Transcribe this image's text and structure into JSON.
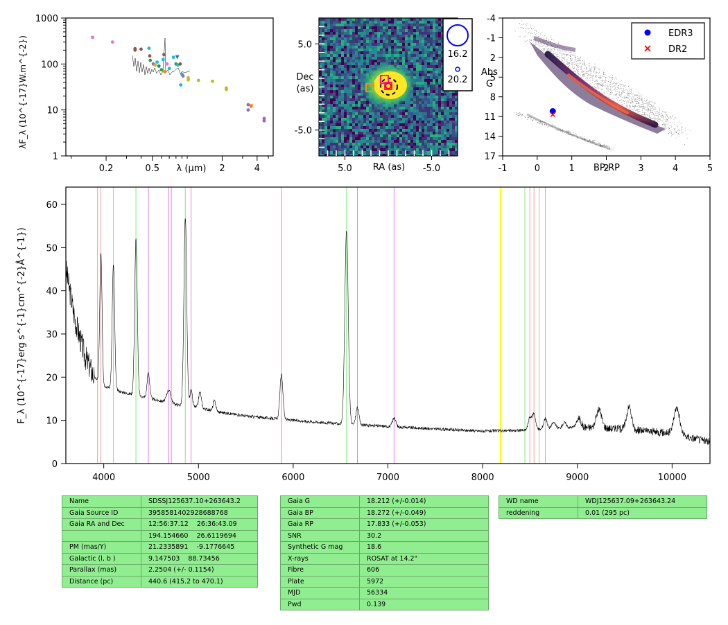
{
  "colors": {
    "line_hydrogen": "#80e880",
    "line_helium": "#e080e0",
    "line_calcium": "#f0a0a0",
    "line_marker": "#ffff00",
    "table_bg": "#90ee90",
    "edr3": "#0000ff",
    "dr2": "#ff0000"
  },
  "chart_data": [
    {
      "id": "sed",
      "type": "scatter",
      "xscale": "log",
      "yscale": "log",
      "xlabel": "λ (μm)",
      "ylabel": "λF_λ (10^{-17}W.m^{-2})",
      "xlim": [
        0.09,
        5.5
      ],
      "ylim": [
        1,
        1000
      ],
      "xticks": [
        {
          "v": 0.2,
          "label": "0.2"
        },
        {
          "v": 0.5,
          "label": "0.5"
        },
        {
          "v": 2,
          "label": "2"
        },
        {
          "v": 4,
          "label": "4"
        }
      ],
      "yticks": [
        {
          "v": 1,
          "label": "1"
        },
        {
          "v": 10,
          "label": "10"
        },
        {
          "v": 100,
          "label": "100"
        },
        {
          "v": 1000,
          "label": "1000"
        }
      ],
      "points": [
        {
          "x": 0.153,
          "y": 380,
          "color": "#e377c2"
        },
        {
          "x": 0.227,
          "y": 300,
          "color": "#e377c2"
        },
        {
          "x": 0.355,
          "y": 200,
          "color": "#8c564b"
        },
        {
          "x": 0.355,
          "y": 215,
          "color": "#8c564b"
        },
        {
          "x": 0.4,
          "y": 210,
          "color": "#8c564b"
        },
        {
          "x": 0.468,
          "y": 220,
          "color": "#17becf"
        },
        {
          "x": 0.475,
          "y": 150,
          "color": "#8c564b"
        },
        {
          "x": 0.48,
          "y": 120,
          "color": "#2ca02c"
        },
        {
          "x": 0.51,
          "y": 100,
          "color": "#9467bd"
        },
        {
          "x": 0.53,
          "y": 95,
          "color": "#bcbd22"
        },
        {
          "x": 0.55,
          "y": 110,
          "color": "#17becf"
        },
        {
          "x": 0.57,
          "y": 90,
          "color": "#1f77b4"
        },
        {
          "x": 0.6,
          "y": 75,
          "color": "#2ca02c"
        },
        {
          "x": 0.62,
          "y": 125,
          "color": "#17becf"
        },
        {
          "x": 0.63,
          "y": 160,
          "color": "#8c564b"
        },
        {
          "x": 0.64,
          "y": 68,
          "color": "#ff7f0e"
        },
        {
          "x": 0.67,
          "y": 100,
          "color": "#e377c2"
        },
        {
          "x": 0.7,
          "y": 80,
          "color": "#17becf"
        },
        {
          "x": 0.76,
          "y": 140,
          "color": "#17becf"
        },
        {
          "x": 0.8,
          "y": 100,
          "color": "#2ca02c"
        },
        {
          "x": 0.83,
          "y": 95,
          "color": "#17becf"
        },
        {
          "x": 0.87,
          "y": 100,
          "color": "#8c564b"
        },
        {
          "x": 0.9,
          "y": 60,
          "color": "#17becf"
        },
        {
          "x": 0.92,
          "y": 55,
          "color": "#9467bd"
        },
        {
          "x": 0.88,
          "y": 35,
          "color": "#17becf"
        },
        {
          "x": 1.02,
          "y": 50,
          "color": "#bcbd22"
        },
        {
          "x": 1.02,
          "y": 45,
          "color": "#bcbd22"
        },
        {
          "x": 1.25,
          "y": 44,
          "color": "#bcbd22"
        },
        {
          "x": 1.65,
          "y": 42,
          "color": "#bcbd22"
        },
        {
          "x": 2.17,
          "y": 30,
          "color": "#bcbd22"
        },
        {
          "x": 2.17,
          "y": 28,
          "color": "#bcbd22"
        },
        {
          "x": 3.35,
          "y": 13,
          "color": "#9467bd"
        },
        {
          "x": 3.35,
          "y": 10,
          "color": "#9467bd"
        },
        {
          "x": 3.55,
          "y": 12,
          "color": "#ff7f0e"
        },
        {
          "x": 4.6,
          "y": 6.5,
          "color": "#9467bd"
        },
        {
          "x": 4.6,
          "y": 5.8,
          "color": "#9467bd"
        }
      ],
      "triangles": [
        {
          "x": 0.82,
          "y": 140,
          "color": "#1f77b4"
        },
        {
          "x": 3.55,
          "y": 12,
          "color": "#ff7f0e"
        }
      ]
    },
    {
      "id": "image",
      "type": "heatmap",
      "xlabel": "RA (as)",
      "ylabel": "Dec (as)",
      "xlim": [
        8,
        -8
      ],
      "ylim": [
        -8,
        8
      ],
      "xticks": [
        {
          "v": 5,
          "label": "5.0"
        },
        {
          "v": -5,
          "label": "-5.0"
        }
      ],
      "yticks": [
        {
          "v": 5,
          "label": "5.0"
        },
        {
          "v": -5,
          "label": "-5.0"
        }
      ],
      "source": {
        "x": 0,
        "y": 0
      },
      "legend": [
        {
          "label": "16.2"
        },
        {
          "label": "20.2"
        }
      ]
    },
    {
      "id": "hr",
      "type": "scatter",
      "xlabel": "BP-RP",
      "ylabel": "Abs G",
      "xlim": [
        -1,
        5
      ],
      "ylim": [
        17,
        -4
      ],
      "xticks": [
        {
          "v": -1,
          "label": "-1"
        },
        {
          "v": 0,
          "label": "0"
        },
        {
          "v": 1,
          "label": "1"
        },
        {
          "v": 2,
          "label": "2"
        },
        {
          "v": 3,
          "label": "3"
        },
        {
          "v": 4,
          "label": "4"
        },
        {
          "v": 5,
          "label": "5"
        }
      ],
      "yticks": [
        {
          "v": -4,
          "label": "-4"
        },
        {
          "v": -1,
          "label": "-1"
        },
        {
          "v": 2,
          "label": "2"
        },
        {
          "v": 5,
          "label": "5"
        },
        {
          "v": 8,
          "label": "8"
        },
        {
          "v": 11,
          "label": "11"
        },
        {
          "v": 14,
          "label": "14"
        },
        {
          "v": 17,
          "label": "17"
        }
      ],
      "series": [
        {
          "name": "EDR3",
          "x": 0.45,
          "y": 10.2,
          "marker": "circle"
        },
        {
          "name": "DR2",
          "x": 0.45,
          "y": 10.7,
          "marker": "x"
        }
      ],
      "legend_position": "top-right"
    },
    {
      "id": "spectrum",
      "type": "line",
      "xlabel": "",
      "ylabel": "F_λ (10^{-17}erg s^{-1}cm^{-2}Å^{-1})",
      "xlim": [
        3600,
        10400
      ],
      "ylim": [
        0,
        64
      ],
      "xticks": [
        {
          "v": 4000,
          "label": "4000"
        },
        {
          "v": 5000,
          "label": "5000"
        },
        {
          "v": 6000,
          "label": "6000"
        },
        {
          "v": 7000,
          "label": "7000"
        },
        {
          "v": 8000,
          "label": "8000"
        },
        {
          "v": 9000,
          "label": "9000"
        },
        {
          "v": 10000,
          "label": "10000"
        }
      ],
      "yticks": [
        {
          "v": 0,
          "label": "0"
        },
        {
          "v": 10,
          "label": "10"
        },
        {
          "v": 20,
          "label": "20"
        },
        {
          "v": 30,
          "label": "30"
        },
        {
          "v": 40,
          "label": "40"
        },
        {
          "v": 50,
          "label": "50"
        },
        {
          "v": 60,
          "label": "60"
        }
      ],
      "continuum": [
        [
          3600,
          45
        ],
        [
          3700,
          33
        ],
        [
          3800,
          25
        ],
        [
          3900,
          20
        ],
        [
          4000,
          18
        ],
        [
          4200,
          16.5
        ],
        [
          4400,
          15.5
        ],
        [
          4600,
          14.5
        ],
        [
          4800,
          13.5
        ],
        [
          5000,
          13
        ],
        [
          5200,
          12
        ],
        [
          5500,
          11
        ],
        [
          6000,
          10
        ],
        [
          6500,
          9.2
        ],
        [
          7000,
          8.6
        ],
        [
          7500,
          8
        ],
        [
          8000,
          7.5
        ],
        [
          8500,
          7.7
        ],
        [
          9000,
          8.5
        ],
        [
          9500,
          8
        ],
        [
          10000,
          7
        ],
        [
          10400,
          5
        ]
      ],
      "emission_lines": [
        {
          "x": 3970,
          "peak": 49,
          "width": 12
        },
        {
          "x": 4102,
          "peak": 46,
          "width": 13
        },
        {
          "x": 4340,
          "peak": 52,
          "width": 14
        },
        {
          "x": 4471,
          "peak": 21,
          "width": 14
        },
        {
          "x": 4686,
          "peak": 17,
          "width": 22
        },
        {
          "x": 4861,
          "peak": 57,
          "width": 15
        },
        {
          "x": 4922,
          "peak": 17,
          "width": 13
        },
        {
          "x": 5016,
          "peak": 16.5,
          "width": 14
        },
        {
          "x": 5169,
          "peak": 14.5,
          "width": 14
        },
        {
          "x": 5876,
          "peak": 20.5,
          "width": 16
        },
        {
          "x": 6563,
          "peak": 54,
          "width": 18
        },
        {
          "x": 6678,
          "peak": 13,
          "width": 16
        },
        {
          "x": 7065,
          "peak": 10.5,
          "width": 18
        },
        {
          "x": 8498,
          "peak": 10.5,
          "width": 18
        },
        {
          "x": 8542,
          "peak": 11.5,
          "width": 18
        },
        {
          "x": 8662,
          "peak": 10.5,
          "width": 18
        },
        {
          "x": 8750,
          "peak": 9.5,
          "width": 20
        },
        {
          "x": 8863,
          "peak": 9.5,
          "width": 20
        },
        {
          "x": 9015,
          "peak": 10.5,
          "width": 22
        },
        {
          "x": 9229,
          "peak": 12.5,
          "width": 28
        },
        {
          "x": 9546,
          "peak": 13,
          "width": 26
        },
        {
          "x": 10049,
          "peak": 13,
          "width": 30
        }
      ],
      "vlines": [
        {
          "x": 3934,
          "kind": "calcium"
        },
        {
          "x": 3969,
          "kind": "calcium"
        },
        {
          "x": 4102,
          "kind": "hydrogen"
        },
        {
          "x": 4340,
          "kind": "hydrogen"
        },
        {
          "x": 4471,
          "kind": "helium"
        },
        {
          "x": 4686,
          "kind": "helium"
        },
        {
          "x": 4713,
          "kind": "helium"
        },
        {
          "x": 4861,
          "kind": "hydrogen"
        },
        {
          "x": 4922,
          "kind": "helium"
        },
        {
          "x": 5876,
          "kind": "helium"
        },
        {
          "x": 6563,
          "kind": "hydrogen"
        },
        {
          "x": 6678,
          "kind": "helium"
        },
        {
          "x": 7065,
          "kind": "helium"
        },
        {
          "x": 8190,
          "kind": "marker"
        },
        {
          "x": 8446,
          "kind": "hydrogen"
        },
        {
          "x": 8498,
          "kind": "calcium"
        },
        {
          "x": 8542,
          "kind": "calcium"
        },
        {
          "x": 8598,
          "kind": "hydrogen"
        },
        {
          "x": 8662,
          "kind": "calcium"
        }
      ]
    }
  ],
  "tables": {
    "object": [
      [
        "Name",
        "SDSSJ125637.10+263643.2"
      ],
      [
        "Gaia Source ID",
        "3958581402928688768"
      ],
      [
        "Gaia RA and Dec",
        "12:56:37.12    26:36:43.09"
      ],
      [
        "",
        "194.154660    26.6119694"
      ],
      [
        "PM (mas/Y)",
        "21.2335891    -9.1776645"
      ],
      [
        "Galactic (l, b )",
        "9.147503    88.73456"
      ],
      [
        "Parallax (mas)",
        "2.2504 (+/- 0.1154)"
      ],
      [
        "Distance (pc)",
        "440.6 (415.2 to 470.1)"
      ]
    ],
    "photometry": [
      [
        "Gaia G",
        "18.212 (+/-0.014)"
      ],
      [
        "Gaia BP",
        "18.272 (+/-0.049)"
      ],
      [
        "Gaia RP",
        "17.833 (+/-0.053)"
      ],
      [
        "SNR",
        "30.2"
      ],
      [
        "Synthetic G mag",
        "18.6"
      ],
      [
        "X-rays",
        "ROSAT at 14.2\""
      ],
      [
        "Fibre",
        "606"
      ],
      [
        "Plate",
        "5972"
      ],
      [
        "MJD",
        "56334"
      ],
      [
        "Pwd",
        "0.139"
      ]
    ],
    "wd": [
      [
        "WD name",
        "WDJ125637.09+263643.24"
      ],
      [
        "reddening",
        "0.01 (295 pc)"
      ]
    ]
  }
}
